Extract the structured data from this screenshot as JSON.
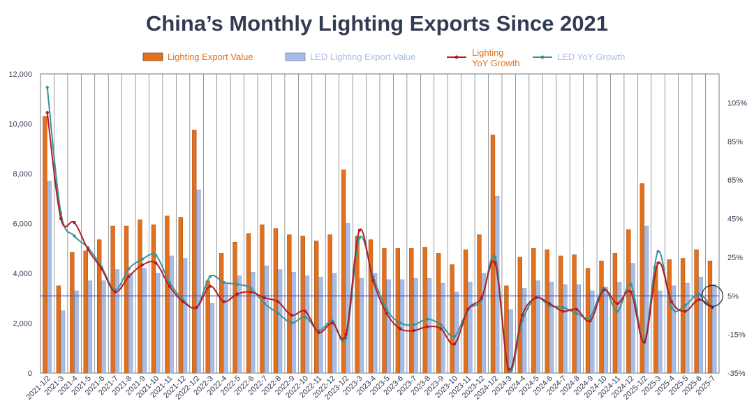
{
  "title": "China’s Monthly Lighting Exports Since 2021",
  "colors": {
    "lighting_bar": "#e2701c",
    "led_bar": "#a8bde6",
    "lighting_yoy": "#b41c24",
    "led_yoy": "#3d9296",
    "ref_line": "#4343c8",
    "grid": "#555555",
    "text": "#333b52"
  },
  "chart_data": {
    "type": "bar",
    "title": "China’s Monthly Lighting Exports Since 2021",
    "categories": [
      "2021-1/2",
      "2021-3",
      "2021-4",
      "2021-5",
      "2021-6",
      "2021-7",
      "2021-8",
      "2021-9",
      "2021-10",
      "2021-11",
      "2021-12",
      "2022-1/2",
      "2022-3",
      "2022-4",
      "2022-5",
      "2022-6",
      "2022-7",
      "2022-8",
      "2022-9",
      "2022-10",
      "2022-11",
      "2022-12",
      "2023-1/2",
      "2023-3",
      "2023-4",
      "2023-5",
      "2023-6",
      "2023-7",
      "2023-8",
      "2023-9",
      "2023-10",
      "2023-11",
      "2023-12",
      "2024-1/2",
      "2024-3",
      "2024-4",
      "2024-5",
      "2024-6",
      "2024-7",
      "2024-8",
      "2024-9",
      "2024-10",
      "2024-11",
      "2024-12",
      "2025-1/2",
      "2025-3",
      "2025-4",
      "2025-5",
      "2025-6",
      "2025-7"
    ],
    "left_axis": {
      "range": [
        0,
        12000
      ],
      "ticks": [
        "0",
        "2,000",
        "4,000",
        "6,000",
        "8,000",
        "10,000",
        "12,000"
      ]
    },
    "right_axis": {
      "range": [
        -35,
        120
      ],
      "ticks": [
        "-35%",
        "-15%",
        "5%",
        "25%",
        "45%",
        "65%",
        "85%",
        "105%"
      ]
    },
    "reference_line_value": 5,
    "legend": {
      "lighting_value": "Lighting Export Value",
      "led_value": "LED Lighting Export Value",
      "lighting_yoy_line1": "Lighting",
      "lighting_yoy_line2": "YoY Growth",
      "led_yoy": "LED YoY Growth"
    },
    "series": [
      {
        "name": "Lighting Export Value",
        "kind": "bar",
        "axis": "left",
        "values": [
          10300,
          3500,
          4850,
          4900,
          5350,
          5900,
          5900,
          6150,
          5950,
          6300,
          6250,
          9750,
          3700,
          4800,
          5250,
          5600,
          5950,
          5800,
          5550,
          5500,
          5300,
          5550,
          8150,
          5500,
          5350,
          5000,
          5000,
          5000,
          5050,
          4800,
          4350,
          4950,
          5550,
          9550,
          3500,
          4650,
          5000,
          4950,
          4700,
          4750,
          4200,
          4500,
          4800,
          5750,
          7600,
          4300,
          4550,
          4600,
          4950,
          4500
        ]
      },
      {
        "name": "LED Lighting Export Value",
        "kind": "bar",
        "axis": "left",
        "values": [
          7700,
          2500,
          3300,
          3700,
          3700,
          4150,
          4000,
          4200,
          4000,
          4700,
          4600,
          7350,
          2800,
          3600,
          3900,
          4050,
          4300,
          4150,
          4050,
          3900,
          3850,
          4000,
          6000,
          3800,
          4000,
          3750,
          3750,
          3800,
          3800,
          3600,
          3250,
          3650,
          4000,
          7100,
          2550,
          3400,
          3700,
          3650,
          3550,
          3550,
          3300,
          3450,
          3650,
          4400,
          5900,
          3300,
          3500,
          3600,
          3850,
          3550
        ]
      },
      {
        "name": "Lighting YoY Growth",
        "kind": "line",
        "axis": "right",
        "values": [
          100,
          45,
          43,
          29,
          19,
          7,
          15,
          21,
          22,
          10,
          2,
          -1,
          10,
          2,
          6,
          7,
          4,
          2,
          -5,
          -3,
          -14,
          -9,
          -15,
          39,
          13,
          -4,
          -12,
          -13,
          -11,
          -12,
          -20,
          -2,
          4,
          22,
          -33,
          -5,
          4,
          1,
          -3,
          -2,
          -8,
          8,
          1,
          7,
          -19,
          22,
          2,
          -3,
          3,
          -1
        ]
      },
      {
        "name": "LED YoY Growth",
        "kind": "line",
        "axis": "right",
        "values": [
          113,
          48,
          36,
          30,
          20,
          8,
          19,
          24,
          26,
          12,
          3,
          -1,
          15,
          12,
          11,
          9,
          1,
          -4,
          -9,
          -6,
          -13,
          -8,
          -17,
          35,
          15,
          -2,
          -9,
          -10,
          -7,
          -10,
          -16,
          -2,
          3,
          25,
          -34,
          -8,
          4,
          0,
          -1,
          -4,
          -6,
          9,
          -3,
          11,
          -18,
          28,
          -1,
          0,
          6,
          -1
        ]
      }
    ]
  }
}
